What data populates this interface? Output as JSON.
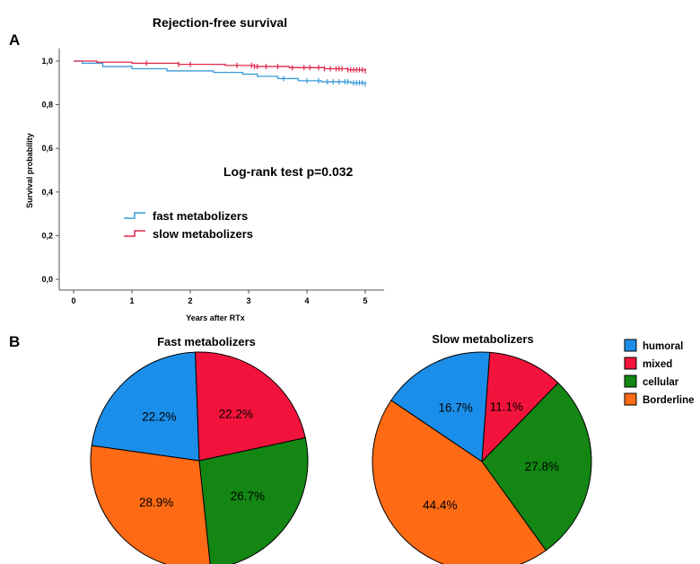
{
  "panel_a": {
    "label": "A",
    "chart_data": {
      "type": "line",
      "title": "Rejection-free survival",
      "xlabel": "Years after RTx",
      "ylabel": "Survival probability",
      "xlim": [
        0,
        5
      ],
      "ylim": [
        0,
        1
      ],
      "xticks": [
        "0",
        "1",
        "2",
        "3",
        "4",
        "5"
      ],
      "yticks": [
        "0,0",
        "0,2",
        "0,4",
        "0,6",
        "0,8",
        "1,0"
      ],
      "annotation": "Log-rank test p=0.032",
      "grid": false,
      "legend_position": "lower-left",
      "series": [
        {
          "name": "fast metabolizers",
          "color": "#3a9ad9",
          "steps": [
            [
              0,
              1.0
            ],
            [
              0.15,
              0.99
            ],
            [
              0.5,
              0.975
            ],
            [
              1.0,
              0.965
            ],
            [
              1.6,
              0.955
            ],
            [
              2.4,
              0.948
            ],
            [
              2.9,
              0.94
            ],
            [
              3.15,
              0.93
            ],
            [
              3.5,
              0.92
            ],
            [
              3.85,
              0.91
            ],
            [
              4.25,
              0.905
            ],
            [
              4.75,
              0.9
            ],
            [
              5.0,
              0.895
            ]
          ],
          "censored": [
            3.6,
            4.0,
            4.2,
            4.35,
            4.45,
            4.55,
            4.65,
            4.7,
            4.8,
            4.85,
            4.9,
            4.95,
            5.0
          ]
        },
        {
          "name": "slow metabolizers",
          "color": "#e0284a",
          "steps": [
            [
              0,
              1.0
            ],
            [
              0.4,
              0.995
            ],
            [
              1.0,
              0.99
            ],
            [
              1.8,
              0.985
            ],
            [
              2.6,
              0.98
            ],
            [
              3.1,
              0.975
            ],
            [
              3.7,
              0.97
            ],
            [
              4.3,
              0.965
            ],
            [
              4.7,
              0.96
            ],
            [
              5.0,
              0.955
            ]
          ],
          "censored": [
            1.25,
            1.8,
            2.0,
            2.8,
            3.05,
            3.1,
            3.15,
            3.3,
            3.5,
            3.75,
            3.95,
            4.05,
            4.2,
            4.3,
            4.4,
            4.5,
            4.55,
            4.6,
            4.7,
            4.75,
            4.8,
            4.85,
            4.9,
            4.95,
            5.0
          ]
        }
      ]
    }
  },
  "panel_b": {
    "label": "B",
    "legend": [
      {
        "name": "humoral",
        "color": "#1a8ee8"
      },
      {
        "name": "mixed",
        "color": "#f2133c"
      },
      {
        "name": "cellular",
        "color": "#138613"
      },
      {
        "name": "Borderline",
        "color": "#ff6a14"
      }
    ],
    "chart_data": [
      {
        "type": "pie",
        "title": "Fast metabolizers",
        "slices": [
          {
            "label": "humoral",
            "value": 22.2,
            "text": "22.2%"
          },
          {
            "label": "mixed",
            "value": 22.2,
            "text": "22.2%"
          },
          {
            "label": "cellular",
            "value": 26.7,
            "text": "26.7%"
          },
          {
            "label": "Borderline",
            "value": 28.9,
            "text": "28.9%"
          }
        ]
      },
      {
        "type": "pie",
        "title": "Slow metabolizers",
        "slices": [
          {
            "label": "humoral",
            "value": 16.7,
            "text": "16.7%"
          },
          {
            "label": "mixed",
            "value": 11.1,
            "text": "11.1%"
          },
          {
            "label": "cellular",
            "value": 27.8,
            "text": "27.8%"
          },
          {
            "label": "Borderline",
            "value": 44.4,
            "text": "44.4%"
          }
        ]
      }
    ]
  }
}
